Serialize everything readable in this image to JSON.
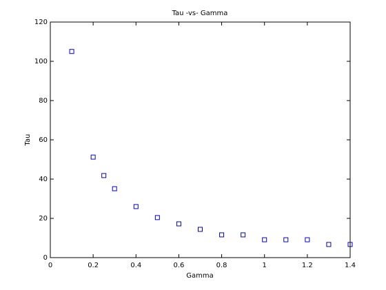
{
  "chart_data": {
    "type": "scatter",
    "title": "Tau -vs- Gamma",
    "x_label": "Gamma",
    "y_label": "Tau",
    "series": [
      {
        "color": "#0000cc",
        "x": [
          0.1,
          0.2,
          0.25,
          0.3,
          0.4,
          0.5,
          0.6,
          0.7,
          0.8,
          0.9,
          1.0,
          1.1,
          1.2,
          1.3,
          1.4
        ],
        "values": [
          105,
          51.2,
          41.8,
          35.1,
          26,
          20.4,
          17.2,
          14.4,
          11.6,
          11.6,
          9.1,
          9.1,
          9.1,
          6.7,
          6.7
        ]
      }
    ],
    "xlim": [
      0,
      1.4
    ],
    "xticks": [
      0,
      0.2,
      0.4,
      0.6,
      0.8,
      1,
      1.2,
      1.4
    ],
    "ylim": [
      0,
      120
    ],
    "yticks": [
      0,
      20,
      40,
      60,
      80,
      100,
      120
    ]
  }
}
